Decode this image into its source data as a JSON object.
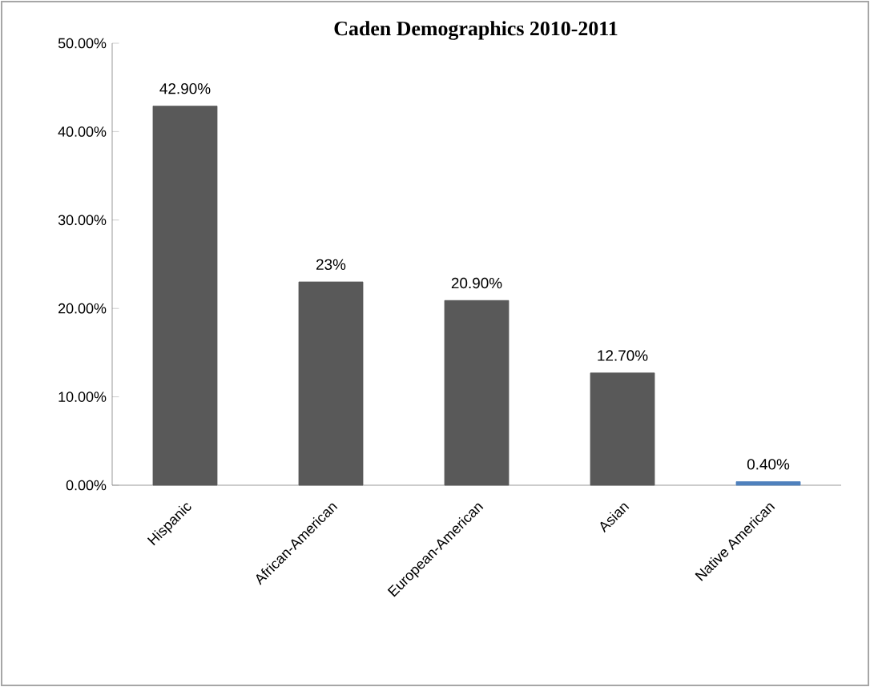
{
  "chart_data": {
    "type": "bar",
    "title": "Caden Demographics 2010-2011",
    "categories": [
      "Hispanic",
      "African-American",
      "European-American",
      "Asian",
      "Native American"
    ],
    "values": [
      42.9,
      23,
      20.9,
      12.7,
      0.4
    ],
    "value_labels": [
      "42.90%",
      "23%",
      "20.90%",
      "12.70%",
      "0.40%"
    ],
    "colors": [
      "#595959",
      "#595959",
      "#595959",
      "#595959",
      "#4f81bd"
    ],
    "ylim": [
      0,
      50
    ],
    "yticks": [
      {
        "value": 0,
        "label": "0.00%"
      },
      {
        "value": 10,
        "label": "10.00%"
      },
      {
        "value": 20,
        "label": "20.00%"
      },
      {
        "value": 30,
        "label": "30.00%"
      },
      {
        "value": 40,
        "label": "40.00%"
      },
      {
        "value": 50,
        "label": "50.00%"
      }
    ]
  }
}
